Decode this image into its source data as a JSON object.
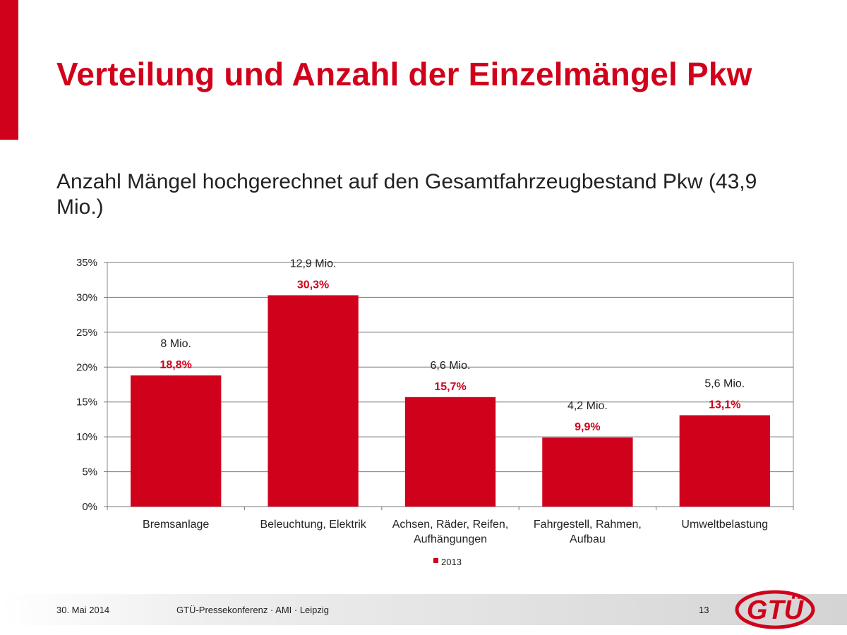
{
  "slide": {
    "title": "Verteilung und Anzahl der Einzelmängel Pkw",
    "subtitle": "Anzahl Mängel hochgerechnet auf den Gesamtfahrzeugbestand Pkw (43,9 Mio.)"
  },
  "chart_data": {
    "type": "bar",
    "categories": [
      [
        "Bremsanlage"
      ],
      [
        "Beleuchtung, Elektrik"
      ],
      [
        "Achsen, Räder, Reifen,",
        "Aufhängungen"
      ],
      [
        "Fahrgestell, Rahmen,",
        "Aufbau"
      ],
      [
        "Umweltbelastung"
      ]
    ],
    "series": [
      {
        "name": "2013",
        "color": "#d0021b",
        "values": [
          18.8,
          30.3,
          15.7,
          9.9,
          13.1
        ]
      }
    ],
    "value_labels": [
      "18,8%",
      "30,3%",
      "15,7%",
      "9,9%",
      "13,1%"
    ],
    "count_labels": [
      "8 Mio.",
      "12,9 Mio.",
      "6,6 Mio.",
      "4,2 Mio.",
      "5,6 Mio."
    ],
    "ylim": [
      0,
      35
    ],
    "yticks": [
      "0%",
      "5%",
      "10%",
      "15%",
      "20%",
      "25%",
      "30%",
      "35%"
    ],
    "grid": true,
    "legend_position": "bottom"
  },
  "footer": {
    "date": "30. Mai 2014",
    "event": "GTÜ-Pressekonferenz · AMI · Leipzig",
    "page": "13"
  },
  "logo": {
    "text": "GTÜ",
    "color": "#d0021b"
  }
}
